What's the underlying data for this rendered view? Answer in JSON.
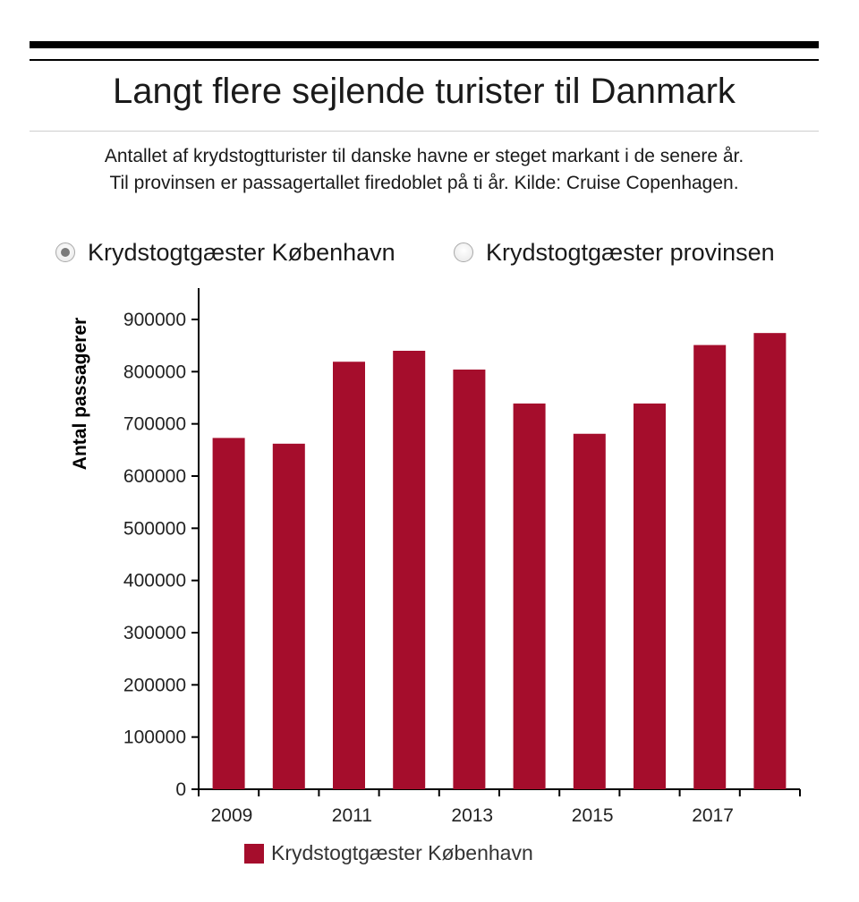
{
  "title": "Langt flere sejlende turister til Danmark",
  "subtitle_line1": "Antallet af krydstogtturister til danske havne er steget markant i de senere år.",
  "subtitle_line2": "Til provinsen er passagertallet firedoblet på ti år. Kilde: Cruise Copenhagen.",
  "radio_options": [
    {
      "label": "Krydstogtgæster København",
      "checked": true
    },
    {
      "label": "Krydstogtgæster provinsen",
      "checked": false
    }
  ],
  "colors": {
    "bar": "#a50d2c",
    "axis": "#000000",
    "text": "#222222"
  },
  "chart_data": {
    "type": "bar",
    "x": [
      2009,
      2010,
      2011,
      2012,
      2013,
      2014,
      2015,
      2016,
      2017,
      2018
    ],
    "x_tick_labels": [
      "2009",
      "2011",
      "2013",
      "2015",
      "2017"
    ],
    "series": [
      {
        "name": "Krydstogtgæster København",
        "values": [
          673000,
          662000,
          819000,
          840000,
          804000,
          739000,
          681000,
          739000,
          851000,
          874000
        ]
      }
    ],
    "ylabel": "Antal passagerer",
    "xlabel": "",
    "ylim": [
      0,
      960000
    ],
    "yticks": [
      0,
      100000,
      200000,
      300000,
      400000,
      500000,
      600000,
      700000,
      800000,
      900000
    ],
    "ytick_labels": [
      "0",
      "100000",
      "200000",
      "300000",
      "400000",
      "500000",
      "600000",
      "700000",
      "800000",
      "900000"
    ],
    "grid": false,
    "legend_position": "bottom"
  }
}
